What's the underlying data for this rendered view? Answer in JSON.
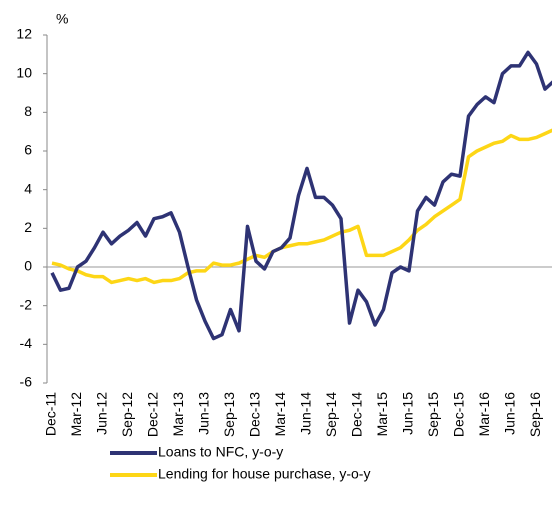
{
  "chart_data": {
    "type": "line",
    "y_unit": "%",
    "categories": [
      "Dec-11",
      null,
      null,
      "Mar-12",
      null,
      null,
      "Jun-12",
      null,
      null,
      "Sep-12",
      null,
      null,
      "Dec-12",
      null,
      null,
      "Mar-13",
      null,
      null,
      "Jun-13",
      null,
      null,
      "Sep-13",
      null,
      null,
      "Dec-13",
      null,
      null,
      "Mar-14",
      null,
      null,
      "Jun-14",
      null,
      null,
      "Sep-14",
      null,
      null,
      "Dec-14",
      null,
      null,
      "Mar-15",
      null,
      null,
      "Jun-15",
      null,
      null,
      "Sep-15",
      null,
      null,
      "Dec-15",
      null,
      null,
      "Mar-16",
      null,
      null,
      "Jun-16",
      null,
      null,
      "Sep-16",
      null,
      null
    ],
    "series": [
      {
        "name": "Loans to NFC, y-o-y",
        "color": "#2e3374",
        "values": [
          -0.3,
          -1.2,
          -1.1,
          0.0,
          0.3,
          1.0,
          1.8,
          1.2,
          1.6,
          1.9,
          2.3,
          1.6,
          2.5,
          2.6,
          2.8,
          1.8,
          0.0,
          -1.7,
          -2.8,
          -3.7,
          -3.5,
          -2.2,
          -3.3,
          2.1,
          0.3,
          -0.1,
          0.8,
          1.0,
          1.5,
          3.7,
          5.1,
          3.6,
          3.6,
          3.2,
          2.5,
          -2.9,
          -1.2,
          -1.8,
          -3.0,
          -2.2,
          -0.3,
          0.0,
          -0.2,
          2.9,
          3.6,
          3.2,
          4.4,
          4.8,
          4.7,
          7.8,
          8.4,
          8.8,
          8.5,
          10.0,
          10.4,
          10.4,
          11.1,
          10.5,
          9.2,
          9.6
        ]
      },
      {
        "name": "Lending for house purchase, y-o-y",
        "color": "#fdd616",
        "values": [
          0.2,
          0.1,
          -0.1,
          -0.2,
          -0.4,
          -0.5,
          -0.5,
          -0.8,
          -0.7,
          -0.6,
          -0.7,
          -0.6,
          -0.8,
          -0.7,
          -0.7,
          -0.6,
          -0.3,
          -0.2,
          -0.2,
          0.2,
          0.1,
          0.1,
          0.2,
          0.4,
          0.6,
          0.5,
          0.8,
          1.0,
          1.1,
          1.2,
          1.2,
          1.3,
          1.4,
          1.6,
          1.8,
          1.9,
          2.1,
          0.6,
          0.6,
          0.6,
          0.8,
          1.0,
          1.4,
          1.9,
          2.2,
          2.6,
          2.9,
          3.2,
          3.5,
          5.7,
          6.0,
          6.2,
          6.4,
          6.5,
          6.8,
          6.6,
          6.6,
          6.7,
          6.9,
          7.1
        ]
      }
    ],
    "ylim": [
      -6,
      12
    ],
    "yticks": [
      -6,
      -4,
      -2,
      0,
      2,
      4,
      6,
      8,
      10,
      12
    ]
  }
}
